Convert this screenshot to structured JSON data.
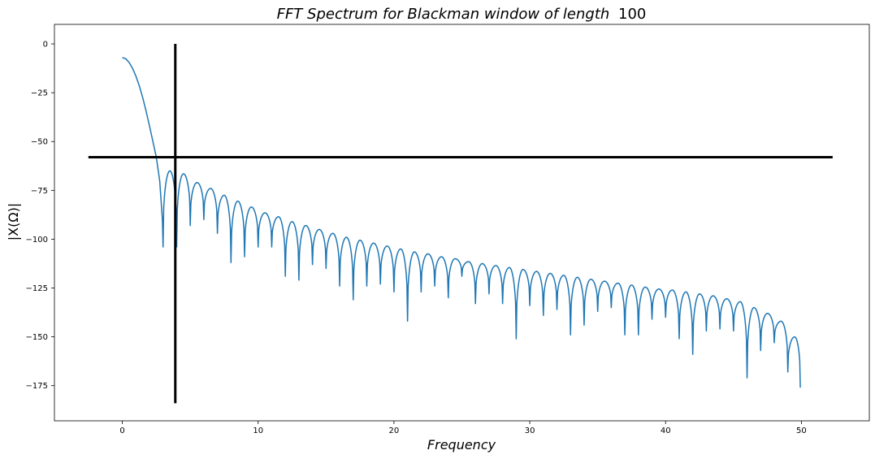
{
  "chart_data": {
    "type": "line",
    "title_italic": "FFT Spectrum for Blackman window of length",
    "title_number": "100",
    "xlabel": "Frequency",
    "ylabel": "|X(Ω)|",
    "xlim": [
      -5,
      55
    ],
    "ylim": [
      -193,
      10
    ],
    "xticks": [
      0,
      10,
      20,
      30,
      40,
      50
    ],
    "yticks": [
      0,
      -25,
      -50,
      -75,
      -100,
      -125,
      -150,
      -175
    ],
    "ytick_labels": [
      "0",
      "−25",
      "−50",
      "−75",
      "−100",
      "−125",
      "−150",
      "−175"
    ],
    "series": [
      {
        "color": "#1f77b4",
        "mainlobe": {
          "x": [
            0,
            0.25,
            0.5,
            0.75,
            1.0,
            1.25,
            1.5,
            1.75,
            2.0,
            2.25,
            2.5,
            2.75,
            2.95,
            3.0
          ],
          "y": [
            -7,
            -7.6,
            -9.5,
            -12.5,
            -16.5,
            -21.5,
            -27.5,
            -34.5,
            -42,
            -50,
            -58,
            -70,
            -90,
            -104
          ]
        },
        "sidelobe_nulls": [
          [
            3,
            -104
          ],
          [
            4,
            -104
          ],
          [
            5,
            -93
          ],
          [
            6,
            -90
          ],
          [
            7,
            -97
          ],
          [
            8,
            -112
          ],
          [
            9,
            -109
          ],
          [
            10,
            -104
          ],
          [
            11,
            -104
          ],
          [
            12,
            -119
          ],
          [
            13,
            -121
          ],
          [
            14,
            -113
          ],
          [
            15,
            -115
          ],
          [
            16,
            -124
          ],
          [
            17,
            -131
          ],
          [
            18,
            -124
          ],
          [
            19,
            -123
          ],
          [
            20,
            -127
          ],
          [
            21,
            -142
          ],
          [
            22,
            -127
          ],
          [
            23,
            -124
          ],
          [
            24,
            -130
          ],
          [
            25,
            -119
          ],
          [
            26,
            -133
          ],
          [
            27,
            -128
          ],
          [
            28,
            -133
          ],
          [
            29,
            -151
          ],
          [
            30,
            -134
          ],
          [
            31,
            -139
          ],
          [
            32,
            -136
          ],
          [
            33,
            -149
          ],
          [
            34,
            -144
          ],
          [
            35,
            -137
          ],
          [
            36,
            -135
          ],
          [
            37,
            -149
          ],
          [
            38,
            -149
          ],
          [
            39,
            -141
          ],
          [
            40,
            -140
          ],
          [
            41,
            -151
          ],
          [
            42,
            -159
          ],
          [
            43,
            -147
          ],
          [
            44,
            -146
          ],
          [
            45,
            -147
          ],
          [
            46,
            -171
          ],
          [
            47,
            -157
          ],
          [
            48,
            -153
          ],
          [
            49,
            -168
          ],
          [
            49.92,
            -176
          ]
        ],
        "sidelobe_peaks": [
          [
            3.5,
            -65
          ],
          [
            4.5,
            -66.5
          ],
          [
            5.5,
            -71
          ],
          [
            6.5,
            -74
          ],
          [
            7.5,
            -77.5
          ],
          [
            8.5,
            -80.5
          ],
          [
            9.5,
            -83.5
          ],
          [
            10.5,
            -86.5
          ],
          [
            11.5,
            -88.5
          ],
          [
            12.5,
            -91
          ],
          [
            13.5,
            -93
          ],
          [
            14.5,
            -95
          ],
          [
            15.5,
            -97
          ],
          [
            16.5,
            -99
          ],
          [
            17.5,
            -100.5
          ],
          [
            18.5,
            -102
          ],
          [
            19.5,
            -103.5
          ],
          [
            20.5,
            -105
          ],
          [
            21.5,
            -106.5
          ],
          [
            22.5,
            -107.5
          ],
          [
            23.5,
            -109
          ],
          [
            24.5,
            -110
          ],
          [
            25.5,
            -111.5
          ],
          [
            26.5,
            -112.5
          ],
          [
            27.5,
            -113.5
          ],
          [
            28.5,
            -114.5
          ],
          [
            29.5,
            -115.5
          ],
          [
            30.5,
            -116.5
          ],
          [
            31.5,
            -117.5
          ],
          [
            32.5,
            -118.5
          ],
          [
            33.5,
            -119.5
          ],
          [
            34.5,
            -120.5
          ],
          [
            35.5,
            -121.5
          ],
          [
            36.5,
            -122.5
          ],
          [
            37.5,
            -123.5
          ],
          [
            38.5,
            -124.5
          ],
          [
            39.5,
            -125.5
          ],
          [
            40.5,
            -126
          ],
          [
            41.5,
            -127
          ],
          [
            42.5,
            -128
          ],
          [
            43.5,
            -129
          ],
          [
            44.5,
            -130.5
          ],
          [
            45.5,
            -132
          ],
          [
            46.5,
            -135
          ],
          [
            47.5,
            -138
          ],
          [
            48.5,
            -142
          ],
          [
            49.5,
            -150
          ]
        ]
      }
    ],
    "annotations": {
      "vertical_line": {
        "x": 3.9,
        "y_range": [
          -184,
          0
        ],
        "color": "#000000"
      },
      "horizontal_line": {
        "y": -58,
        "x_range": [
          -2.5,
          52.3
        ],
        "color": "#000000"
      }
    },
    "grid": false
  }
}
